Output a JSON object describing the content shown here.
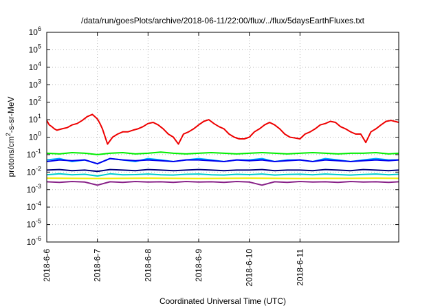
{
  "chart_data": {
    "type": "line",
    "title": "/data/run/goesPlots/archive/2018-06-11/22:00/flux/../flux/5daysEarthFluxes.txt",
    "xlabel": "Coordinated Universal Time (UTC)",
    "ylabel": "protons/cm2-s-sr-MeV",
    "ylabel_base": "protons/cm",
    "ylabel_sup": "2",
    "ylabel_rest": "-s-sr-MeV",
    "yscale": "log",
    "ylim": [
      1e-06,
      1000000.0
    ],
    "xlim": [
      0,
      6.95
    ],
    "x_unit": "days since 2018-6-6 00:00 UTC",
    "grid": true,
    "x_ticks": [
      {
        "v": 0,
        "label": "2018-6-6"
      },
      {
        "v": 1,
        "label": "2018-6-7"
      },
      {
        "v": 2,
        "label": "2018-6-8"
      },
      {
        "v": 3,
        "label": "2018-6-9"
      },
      {
        "v": 4,
        "label": "2018-6-10"
      },
      {
        "v": 5,
        "label": "2018-6-11"
      }
    ],
    "y_ticks": [
      {
        "exp": -6,
        "label": "10",
        "sup": "-6"
      },
      {
        "exp": -5,
        "label": "10",
        "sup": "-5"
      },
      {
        "exp": -4,
        "label": "10",
        "sup": "-4"
      },
      {
        "exp": -3,
        "label": "10",
        "sup": "-3"
      },
      {
        "exp": -2,
        "label": "10",
        "sup": "-2"
      },
      {
        "exp": -1,
        "label": "10",
        "sup": "-1"
      },
      {
        "exp": 0,
        "label": "10",
        "sup": "0"
      },
      {
        "exp": 1,
        "label": "10",
        "sup": "1"
      },
      {
        "exp": 2,
        "label": "10",
        "sup": "2"
      },
      {
        "exp": 3,
        "label": "10",
        "sup": "3"
      },
      {
        "exp": 4,
        "label": "10",
        "sup": "4"
      },
      {
        "exp": 5,
        "label": "10",
        "sup": "5"
      },
      {
        "exp": 6,
        "label": "10",
        "sup": "6"
      }
    ],
    "series": [
      {
        "color": "#00ee00",
        "x": [
          0,
          0.25,
          0.5,
          0.75,
          1,
          1.25,
          1.5,
          1.75,
          2,
          2.25,
          2.5,
          2.75,
          3,
          3.25,
          3.5,
          3.75,
          4,
          4.25,
          4.5,
          4.75,
          5,
          5.25,
          5.5,
          5.75,
          6,
          6.25,
          6.5,
          6.75,
          6.95
        ],
        "y": [
          0.12,
          0.11,
          0.13,
          0.12,
          0.1,
          0.12,
          0.13,
          0.11,
          0.12,
          0.14,
          0.12,
          0.11,
          0.12,
          0.13,
          0.12,
          0.11,
          0.12,
          0.13,
          0.12,
          0.11,
          0.12,
          0.13,
          0.12,
          0.11,
          0.12,
          0.12,
          0.13,
          0.11,
          0.12
        ]
      },
      {
        "color": "#00aaff",
        "x": [
          0,
          0.25,
          0.5,
          0.75,
          1,
          1.25,
          1.5,
          1.75,
          2,
          2.25,
          2.5,
          2.75,
          3,
          3.25,
          3.5,
          3.75,
          4,
          4.25,
          4.5,
          4.75,
          5,
          5.25,
          5.5,
          5.75,
          6,
          6.25,
          6.5,
          6.75,
          6.95
        ],
        "y": [
          0.05,
          0.06,
          0.04,
          0.05,
          0.03,
          0.06,
          0.05,
          0.04,
          0.06,
          0.05,
          0.04,
          0.05,
          0.06,
          0.05,
          0.04,
          0.05,
          0.05,
          0.06,
          0.04,
          0.05,
          0.05,
          0.04,
          0.06,
          0.05,
          0.04,
          0.05,
          0.06,
          0.05,
          0.05
        ]
      },
      {
        "color": "#0000ee",
        "x": [
          0,
          0.25,
          0.5,
          0.75,
          1,
          1.25,
          1.5,
          1.75,
          2,
          2.25,
          2.5,
          2.75,
          3,
          3.25,
          3.5,
          3.75,
          4,
          4.25,
          4.5,
          4.75,
          5,
          5.25,
          5.5,
          5.75,
          6,
          6.25,
          6.5,
          6.75,
          6.95
        ],
        "y": [
          0.04,
          0.05,
          0.045,
          0.05,
          0.03,
          0.06,
          0.05,
          0.045,
          0.05,
          0.045,
          0.04,
          0.05,
          0.05,
          0.045,
          0.04,
          0.05,
          0.045,
          0.05,
          0.04,
          0.045,
          0.05,
          0.04,
          0.05,
          0.045,
          0.04,
          0.045,
          0.05,
          0.045,
          0.05
        ]
      },
      {
        "color": "#000080",
        "x": [
          0,
          0.25,
          0.5,
          0.75,
          1,
          1.25,
          1.5,
          1.75,
          2,
          2.25,
          2.5,
          2.75,
          3,
          3.25,
          3.5,
          3.75,
          4,
          4.25,
          4.5,
          4.75,
          5,
          5.25,
          5.5,
          5.75,
          6,
          6.25,
          6.5,
          6.75,
          6.95
        ],
        "y": [
          0.013,
          0.014,
          0.012,
          0.013,
          0.011,
          0.014,
          0.013,
          0.012,
          0.014,
          0.013,
          0.012,
          0.013,
          0.014,
          0.013,
          0.012,
          0.013,
          0.013,
          0.014,
          0.012,
          0.013,
          0.013,
          0.012,
          0.014,
          0.013,
          0.012,
          0.014,
          0.013,
          0.012,
          0.013
        ]
      },
      {
        "color": "#00cccc",
        "x": [
          0,
          0.25,
          0.5,
          0.75,
          1,
          1.25,
          1.5,
          1.75,
          2,
          2.25,
          2.5,
          2.75,
          3,
          3.25,
          3.5,
          3.75,
          4,
          4.25,
          4.5,
          4.75,
          5,
          5.25,
          5.5,
          5.75,
          6,
          6.25,
          6.5,
          6.75,
          6.95
        ],
        "y": [
          0.007,
          0.008,
          0.007,
          0.0075,
          0.006,
          0.008,
          0.007,
          0.0072,
          0.0078,
          0.007,
          0.0068,
          0.0075,
          0.0078,
          0.007,
          0.0068,
          0.0075,
          0.0072,
          0.0078,
          0.0068,
          0.0074,
          0.0076,
          0.007,
          0.0078,
          0.0072,
          0.0068,
          0.0074,
          0.0078,
          0.007,
          0.0075
        ]
      },
      {
        "color": "#eeee00",
        "x": [
          0,
          0.5,
          1,
          1.5,
          2,
          2.5,
          3,
          3.5,
          4,
          4.5,
          5,
          5.5,
          6,
          6.5,
          6.95
        ],
        "y": [
          0.0045,
          0.0044,
          0.0043,
          0.0044,
          0.0045,
          0.0044,
          0.0043,
          0.0044,
          0.0045,
          0.0044,
          0.0043,
          0.0044,
          0.0044,
          0.0045,
          0.0044
        ]
      },
      {
        "color": "#882288",
        "x": [
          0,
          0.25,
          0.5,
          0.75,
          1,
          1.25,
          1.5,
          1.75,
          2,
          2.25,
          2.5,
          2.75,
          3,
          3.25,
          3.5,
          3.75,
          4,
          4.25,
          4.5,
          4.75,
          5,
          5.25,
          5.5,
          5.75,
          6,
          6.25,
          6.5,
          6.75,
          6.95
        ],
        "y": [
          0.0028,
          0.0026,
          0.0029,
          0.0027,
          0.0018,
          0.0028,
          0.0026,
          0.0029,
          0.0027,
          0.0028,
          0.0026,
          0.0029,
          0.0027,
          0.0028,
          0.0026,
          0.0029,
          0.0027,
          0.0018,
          0.0028,
          0.0026,
          0.0029,
          0.0027,
          0.0028,
          0.0026,
          0.0029,
          0.0027,
          0.0028,
          0.0026,
          0.0028
        ]
      },
      {
        "color": "#ee0000",
        "x": [
          0,
          0.05,
          0.1,
          0.15,
          0.2,
          0.3,
          0.4,
          0.5,
          0.6,
          0.7,
          0.8,
          0.9,
          1.0,
          1.05,
          1.1,
          1.2,
          1.3,
          1.4,
          1.5,
          1.6,
          1.7,
          1.8,
          1.9,
          2.0,
          2.1,
          2.2,
          2.3,
          2.4,
          2.5,
          2.6,
          2.7,
          2.8,
          2.9,
          3.0,
          3.1,
          3.2,
          3.3,
          3.4,
          3.5,
          3.6,
          3.7,
          3.8,
          3.9,
          4.0,
          4.1,
          4.2,
          4.3,
          4.4,
          4.5,
          4.6,
          4.7,
          4.8,
          4.9,
          5.0,
          5.1,
          5.2,
          5.3,
          5.4,
          5.5,
          5.6,
          5.7,
          5.8,
          5.9,
          6.0,
          6.1,
          6.2,
          6.3,
          6.4,
          6.5,
          6.6,
          6.7,
          6.8,
          6.95
        ],
        "y": [
          9,
          5,
          4,
          3,
          2.5,
          3,
          3.5,
          5,
          6,
          9,
          15,
          20,
          11,
          6,
          3,
          0.4,
          1,
          1.5,
          2,
          2,
          2.5,
          3,
          4,
          6,
          7,
          5,
          3,
          1.5,
          1,
          0.4,
          1.5,
          2,
          3,
          5,
          8,
          10,
          6,
          4,
          3,
          1.5,
          1,
          0.8,
          0.8,
          1,
          2,
          3,
          5,
          7,
          5,
          3,
          1.5,
          1,
          0.9,
          0.8,
          1.5,
          2,
          3,
          5,
          6,
          8,
          7,
          4,
          3,
          2,
          1.5,
          1.5,
          0.5,
          2,
          3,
          5,
          8,
          9,
          7
        ]
      }
    ]
  }
}
